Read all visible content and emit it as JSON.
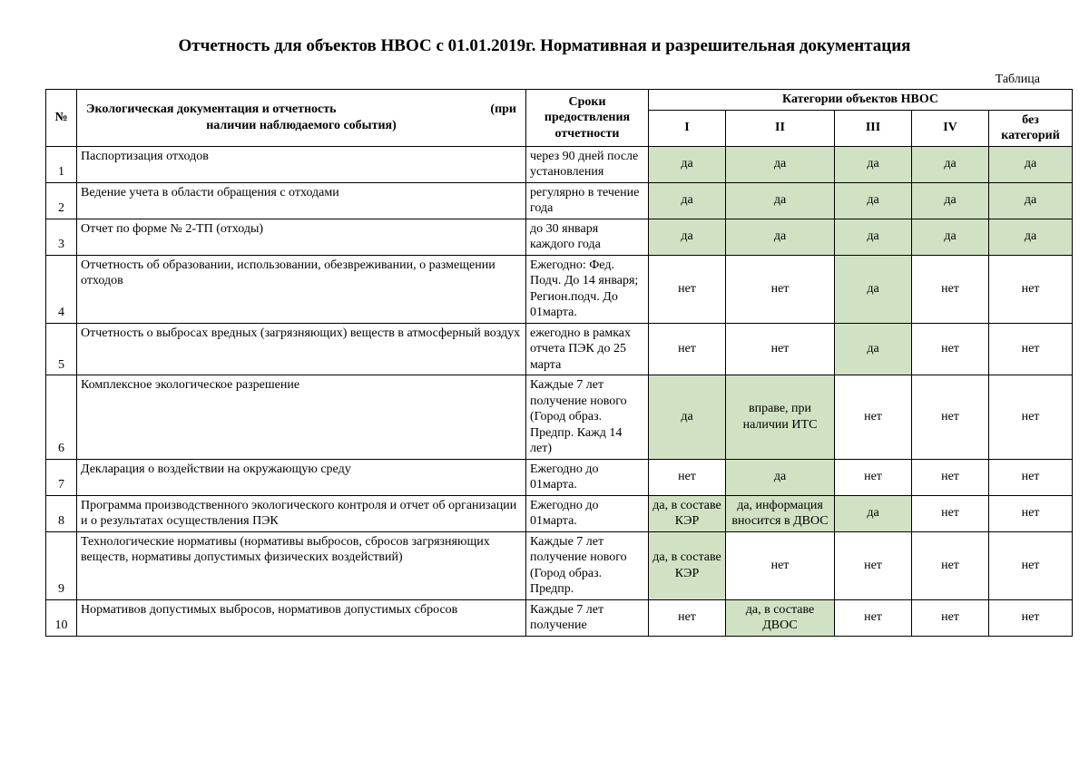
{
  "colors": {
    "yes_bg": "#d1e2c4",
    "border": "#000000",
    "page_bg": "#ffffff",
    "text": "#000000"
  },
  "title": "Отчетность для объектов НВОС с 01.01.2019г. Нормативная и разрешительная документация",
  "table_label": "Таблица",
  "header": {
    "num": "№",
    "desc_line1_left": "Экологическая документация и отчетность",
    "desc_line1_right": "(при",
    "desc_line2": "наличии наблюдаемого события)",
    "terms": "Сроки предоствления отчетности",
    "cat_group": "Категории объектов НВОС",
    "c1": "I",
    "c2": "II",
    "c3": "III",
    "c4": "IV",
    "c5": "без категорий"
  },
  "rows": [
    {
      "n": "1",
      "desc": "Паспортизация отходов",
      "term": "через 90 дней после установления",
      "c": [
        {
          "t": "да",
          "y": true
        },
        {
          "t": "да",
          "y": true
        },
        {
          "t": "да",
          "y": true
        },
        {
          "t": "да",
          "y": true
        },
        {
          "t": "да",
          "y": true
        }
      ]
    },
    {
      "n": "2",
      "desc": "Ведение учета в области обращения с отходами",
      "term": "регулярно в течение года",
      "c": [
        {
          "t": "да",
          "y": true
        },
        {
          "t": "да",
          "y": true
        },
        {
          "t": "да",
          "y": true
        },
        {
          "t": "да",
          "y": true
        },
        {
          "t": "да",
          "y": true
        }
      ]
    },
    {
      "n": "3",
      "desc": "Отчет по форме № 2-ТП (отходы)",
      "term": "до 30 января каждого года",
      "c": [
        {
          "t": "да",
          "y": true
        },
        {
          "t": "да",
          "y": true
        },
        {
          "t": "да",
          "y": true
        },
        {
          "t": "да",
          "y": true
        },
        {
          "t": "да",
          "y": true
        }
      ]
    },
    {
      "n": "4",
      "desc": "Отчетность об образовании, использовании, обезвреживании, о размещении отходов",
      "term": "Ежегодно: Фед. Подч. До 14 января; Регион.подч. До 01марта.",
      "c": [
        {
          "t": "нет",
          "y": false
        },
        {
          "t": "нет",
          "y": false
        },
        {
          "t": "да",
          "y": true
        },
        {
          "t": "нет",
          "y": false
        },
        {
          "t": "нет",
          "y": false
        }
      ]
    },
    {
      "n": "5",
      "desc": "Отчетность о выбросах вредных (загрязняющих) веществ в атмосферный воздух",
      "term": "ежегодно в рамках отчета ПЭК до 25 марта",
      "c": [
        {
          "t": "нет",
          "y": false
        },
        {
          "t": "нет",
          "y": false
        },
        {
          "t": "да",
          "y": true
        },
        {
          "t": "нет",
          "y": false
        },
        {
          "t": "нет",
          "y": false
        }
      ]
    },
    {
      "n": "6",
      "desc": "Комплексное экологическое разрешение",
      "term": "Каждые 7 лет получение нового (Город образ. Предпр. Кажд  14 лет)",
      "c": [
        {
          "t": "да",
          "y": true
        },
        {
          "t": "вправе, при наличии ИТС",
          "y": true
        },
        {
          "t": "нет",
          "y": false
        },
        {
          "t": "нет",
          "y": false
        },
        {
          "t": "нет",
          "y": false
        }
      ]
    },
    {
      "n": "7",
      "desc": "Декларация о воздействии на окружающую среду",
      "term": "Ежегодно до 01марта.",
      "c": [
        {
          "t": "нет",
          "y": false
        },
        {
          "t": "да",
          "y": true
        },
        {
          "t": "нет",
          "y": false
        },
        {
          "t": "нет",
          "y": false
        },
        {
          "t": "нет",
          "y": false
        }
      ]
    },
    {
      "n": "8",
      "desc": "Программа производственного экологического контроля и отчет об организации и о результатах осуществления ПЭК",
      "term": "Ежегодно до 01марта.",
      "c": [
        {
          "t": "да, в составе КЭР",
          "y": true
        },
        {
          "t": "да, информация вносится в ДВОС",
          "y": true
        },
        {
          "t": "да",
          "y": true
        },
        {
          "t": "нет",
          "y": false
        },
        {
          "t": "нет",
          "y": false
        }
      ]
    },
    {
      "n": "9",
      "desc": "Технологические нормативы (нормативы выбросов, сбросов загрязняющих веществ, нормативы допустимых физических воздействий)",
      "term": "Каждые 7 лет получение нового (Город образ. Предпр.",
      "c": [
        {
          "t": "да, в составе КЭР",
          "y": true
        },
        {
          "t": "нет",
          "y": false
        },
        {
          "t": "нет",
          "y": false
        },
        {
          "t": "нет",
          "y": false
        },
        {
          "t": "нет",
          "y": false
        }
      ]
    },
    {
      "n": "10",
      "desc": "Нормативов допустимых выбросов, нормативов допустимых сбросов",
      "term": "Каждые 7 лет получение",
      "c": [
        {
          "t": "нет",
          "y": false
        },
        {
          "t": "да, в составе ДВОС",
          "y": true
        },
        {
          "t": "нет",
          "y": false
        },
        {
          "t": "нет",
          "y": false
        },
        {
          "t": "нет",
          "y": false
        }
      ]
    }
  ]
}
